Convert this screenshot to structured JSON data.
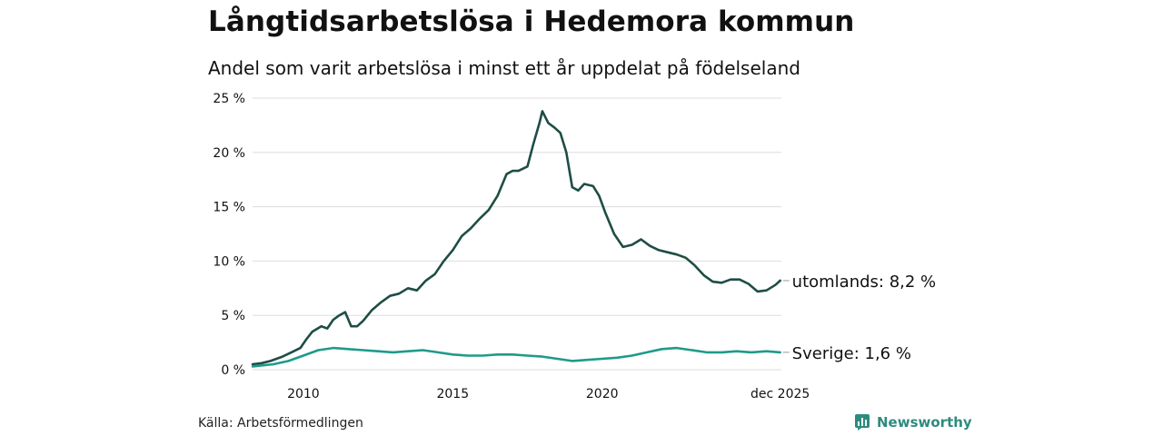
{
  "header": {
    "title": "Långtidsarbetslösa i Hedemora kommun",
    "subtitle": "Andel som varit arbetslösa i minst ett år uppdelat på födelseland"
  },
  "footer": {
    "source": "Källa: Arbetsförmedlingen",
    "brand": "Newsworthy"
  },
  "colors": {
    "utomlands": "#1e4d45",
    "sverige": "#1f9a8a",
    "grid": "#dddddd",
    "text": "#111111"
  },
  "chart_data": {
    "type": "line",
    "title": "Långtidsarbetslösa i Hedemora kommun",
    "subtitle": "Andel som varit arbetslösa i minst ett år uppdelat på födelseland",
    "xlabel": "",
    "ylabel": "",
    "xlim": [
      2008.3,
      2026.0
    ],
    "ylim": [
      0,
      25
    ],
    "yticks": [
      0,
      5,
      10,
      15,
      20,
      25
    ],
    "ytick_labels": [
      "0 %",
      "5 %",
      "10 %",
      "15 %",
      "20 %",
      "25 %"
    ],
    "xticks": [
      2010,
      2015,
      2020,
      2025.96
    ],
    "xtick_labels": [
      "2010",
      "2015",
      "2020",
      "dec 2025"
    ],
    "grid": true,
    "series": [
      {
        "name": "utomlands",
        "end_label": "utomlands: 8,2 %",
        "x": [
          2008.3,
          2008.6,
          2008.9,
          2009.1,
          2009.3,
          2009.6,
          2009.9,
          2010.1,
          2010.3,
          2010.6,
          2010.8,
          2011.0,
          2011.2,
          2011.4,
          2011.6,
          2011.8,
          2012.0,
          2012.3,
          2012.6,
          2012.9,
          2013.2,
          2013.5,
          2013.8,
          2014.1,
          2014.4,
          2014.7,
          2015.0,
          2015.3,
          2015.6,
          2015.9,
          2016.2,
          2016.5,
          2016.8,
          2017.0,
          2017.2,
          2017.5,
          2017.7,
          2017.9,
          2018.0,
          2018.2,
          2018.4,
          2018.6,
          2018.8,
          2019.0,
          2019.2,
          2019.4,
          2019.7,
          2019.9,
          2020.1,
          2020.4,
          2020.7,
          2021.0,
          2021.3,
          2021.6,
          2021.9,
          2022.2,
          2022.5,
          2022.8,
          2023.1,
          2023.4,
          2023.7,
          2024.0,
          2024.3,
          2024.6,
          2024.9,
          2025.2,
          2025.5,
          2025.8,
          2025.96
        ],
        "values": [
          0.5,
          0.6,
          0.8,
          1.0,
          1.2,
          1.6,
          2.0,
          2.8,
          3.5,
          4.0,
          3.8,
          4.6,
          5.0,
          5.3,
          4.0,
          4.0,
          4.5,
          5.5,
          6.2,
          6.8,
          7.0,
          7.5,
          7.3,
          8.2,
          8.8,
          10.0,
          11.0,
          12.3,
          13.0,
          13.9,
          14.7,
          16.0,
          18.0,
          18.3,
          18.3,
          18.7,
          20.8,
          22.7,
          23.8,
          22.7,
          22.3,
          21.8,
          20.0,
          16.8,
          16.5,
          17.1,
          16.9,
          16.0,
          14.5,
          12.5,
          11.3,
          11.5,
          12.0,
          11.4,
          11.0,
          10.8,
          10.6,
          10.3,
          9.6,
          8.7,
          8.1,
          8.0,
          8.3,
          8.3,
          7.9,
          7.2,
          7.3,
          7.8,
          8.2
        ]
      },
      {
        "name": "Sverige",
        "end_label": "Sverige: 1,6 %",
        "x": [
          2008.3,
          2009.0,
          2009.5,
          2010.0,
          2010.5,
          2011.0,
          2011.5,
          2012.0,
          2012.5,
          2013.0,
          2013.5,
          2014.0,
          2014.5,
          2015.0,
          2015.5,
          2016.0,
          2016.5,
          2017.0,
          2017.5,
          2018.0,
          2018.5,
          2019.0,
          2019.5,
          2020.0,
          2020.5,
          2021.0,
          2021.5,
          2022.0,
          2022.5,
          2023.0,
          2023.5,
          2024.0,
          2024.5,
          2025.0,
          2025.5,
          2025.96
        ],
        "values": [
          0.3,
          0.5,
          0.8,
          1.3,
          1.8,
          2.0,
          1.9,
          1.8,
          1.7,
          1.6,
          1.7,
          1.8,
          1.6,
          1.4,
          1.3,
          1.3,
          1.4,
          1.4,
          1.3,
          1.2,
          1.0,
          0.8,
          0.9,
          1.0,
          1.1,
          1.3,
          1.6,
          1.9,
          2.0,
          1.8,
          1.6,
          1.6,
          1.7,
          1.6,
          1.7,
          1.6
        ]
      }
    ]
  }
}
